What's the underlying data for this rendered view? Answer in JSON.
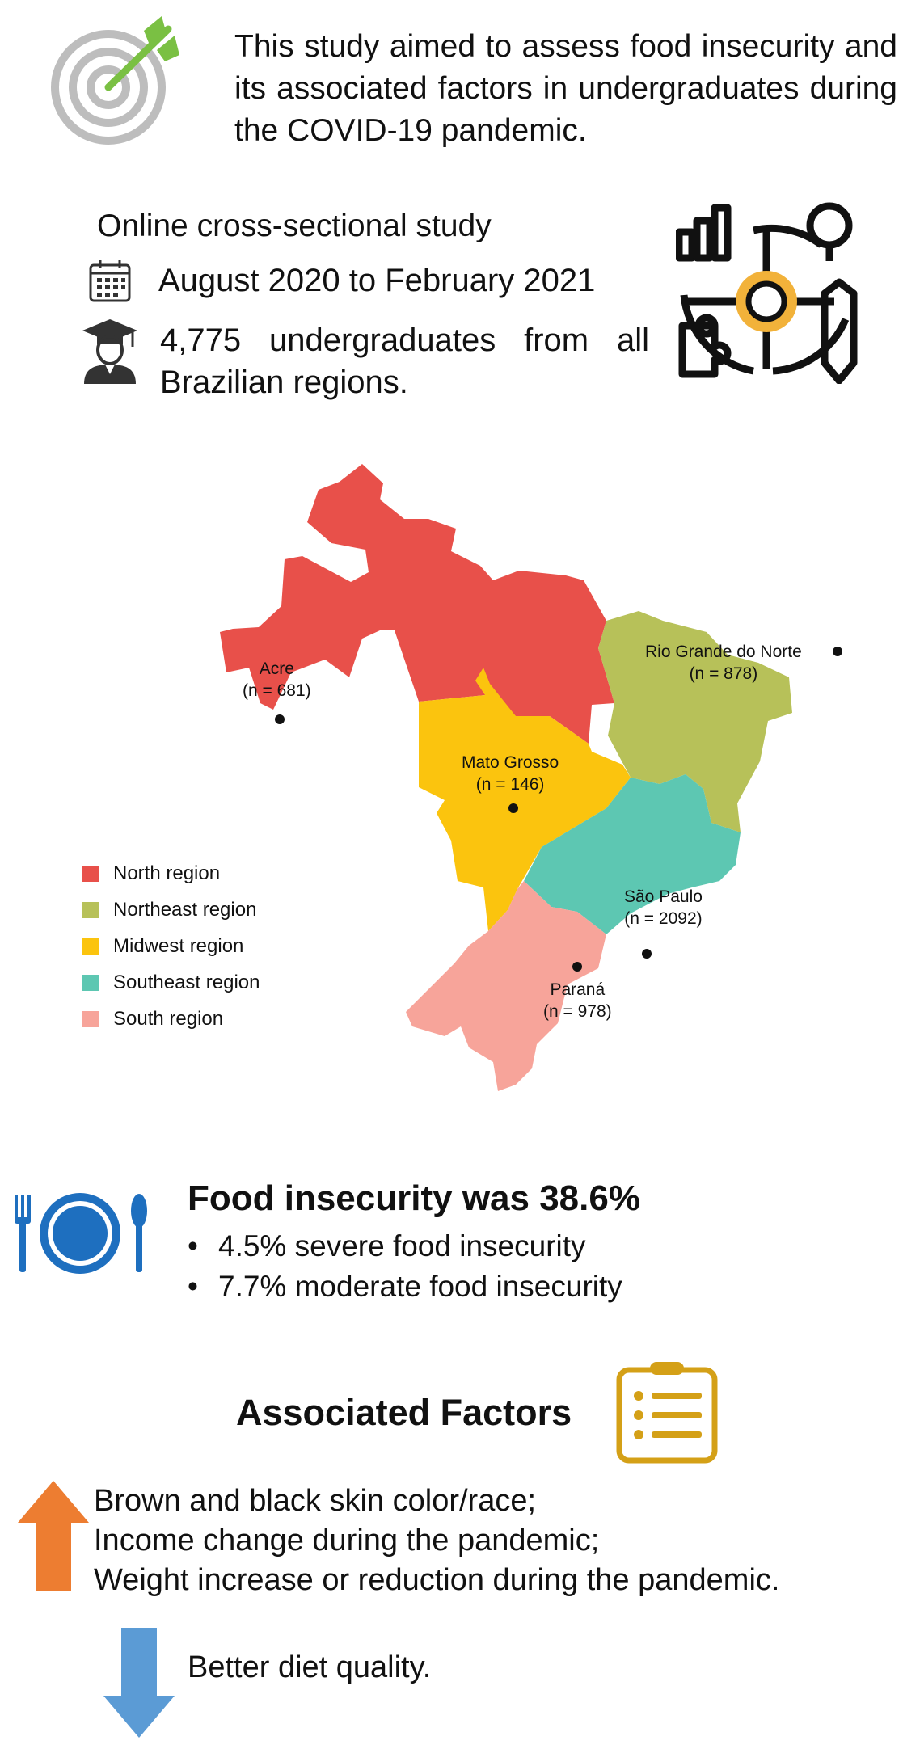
{
  "aim": {
    "text": "This study aimed to assess food insecurity and its associated factors in undergraduates during the COVID-19 pandemic."
  },
  "study": {
    "design": "Online cross-sectional study",
    "period": "August 2020 to February 2021",
    "sample": "4,775 undergraduates from all Brazilian regions."
  },
  "map": {
    "states": [
      {
        "name": "Acre",
        "n": "(n = 681)"
      },
      {
        "name": "Rio Grande do Norte",
        "n": "(n = 878)"
      },
      {
        "name": "Mato Grosso",
        "n": "(n = 146)"
      },
      {
        "name": "São Paulo",
        "n": "(n = 2092)"
      },
      {
        "name": "Paraná",
        "n": "(n = 978)"
      }
    ],
    "legend": [
      {
        "label": "North region",
        "color": "#E8504A"
      },
      {
        "label": "Northeast region",
        "color": "#B7C159"
      },
      {
        "label": "Midwest region",
        "color": "#FBC40E"
      },
      {
        "label": "Southeast region",
        "color": "#5DC7B2"
      },
      {
        "label": "South region",
        "color": "#F7A49A"
      }
    ]
  },
  "food_insecurity": {
    "headline": "Food insecurity was 38.6%",
    "items": [
      "4.5% severe food insecurity",
      "7.7% moderate food insecurity"
    ]
  },
  "associated": {
    "title": "Associated Factors",
    "increase": [
      "Brown and black skin color/race;",
      "Income change during the pandemic;",
      "Weight increase or reduction during the pandemic."
    ],
    "decrease": "Better diet quality."
  },
  "icons": {
    "target": "target-icon",
    "calendar": "calendar-icon",
    "graduate": "graduate-icon",
    "research": "research-icon",
    "plate": "plate-cutlery-icon",
    "clipboard": "clipboard-list-icon",
    "arrow_up": "arrow-up-icon",
    "arrow_down": "arrow-down-icon"
  },
  "colors": {
    "arrow_up": "#ED7D31",
    "arrow_down": "#5B9BD5",
    "plate": "#1E6FBF",
    "clipboard": "#D4A017",
    "target_arrow": "#7AC043"
  }
}
